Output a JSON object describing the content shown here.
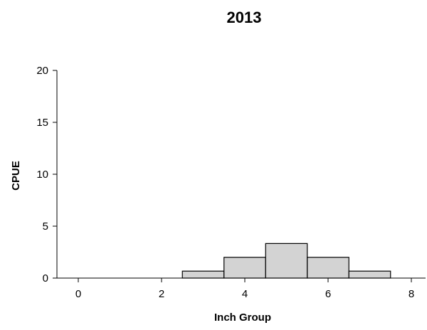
{
  "chart_data": {
    "type": "bar",
    "title": "2013",
    "xlabel": "Inch Group",
    "ylabel": "CPUE",
    "xlim": [
      -0.5,
      8.5
    ],
    "ylim": [
      0,
      20
    ],
    "xticks": [
      0,
      2,
      4,
      6,
      8
    ],
    "yticks": [
      0,
      5,
      10,
      15,
      20
    ],
    "bar_width": 1,
    "bars": [
      {
        "x": 3,
        "value": 0.67
      },
      {
        "x": 4,
        "value": 2.0
      },
      {
        "x": 5,
        "value": 3.33
      },
      {
        "x": 6,
        "value": 2.0
      },
      {
        "x": 7,
        "value": 0.67
      }
    ],
    "grid": false,
    "colors": {
      "bar_fill": "#d3d3d3",
      "bar_edge": "#000000"
    }
  }
}
